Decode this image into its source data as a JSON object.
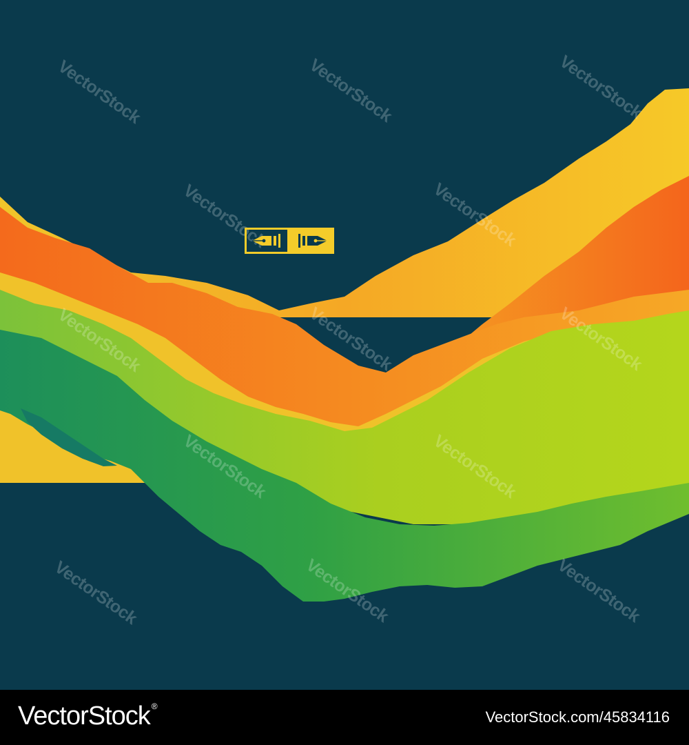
{
  "colors": {
    "background": "#0a3a4c",
    "orange": "#f5701f",
    "yellow": "#f5c624",
    "lime": "#a6d11f",
    "green": "#1d9a52",
    "badge": "#f4cc2a",
    "footer_background": "#000000",
    "footer_text": "#ffffff"
  },
  "watermark": {
    "text": "VectorStock"
  },
  "badge": {
    "left_icon": "pen-nib-left-icon",
    "right_icon": "pen-nib-right-icon"
  },
  "footer": {
    "brand": "VectorStock",
    "registered_mark": "®",
    "image_id": "VectorStock.com/45834116"
  }
}
